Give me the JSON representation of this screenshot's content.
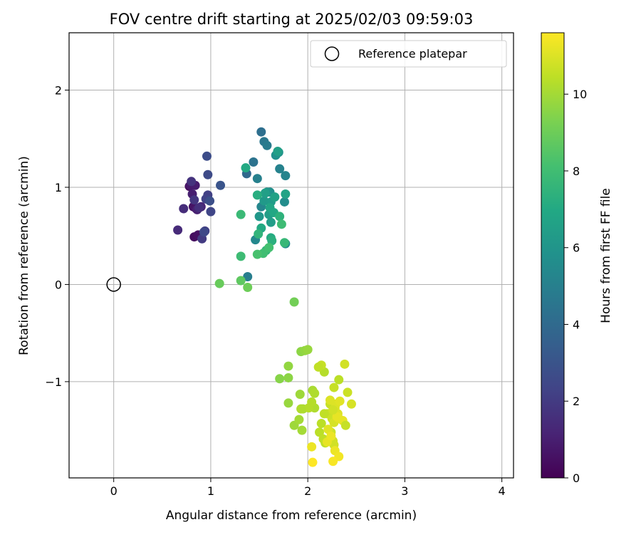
{
  "chart_data": {
    "type": "scatter",
    "title": "FOV centre drift starting at 2025/02/03 09:59:03",
    "xlabel": "Angular distance from reference (arcmin)",
    "ylabel": "Rotation from reference (arcmin)",
    "xlim": [
      -0.46,
      4.12
    ],
    "ylim": [
      -1.99,
      2.59
    ],
    "xticks": [
      0,
      1,
      2,
      3,
      4
    ],
    "yticks": [
      -1,
      0,
      1,
      2
    ],
    "xtick_labels": [
      "0",
      "1",
      "2",
      "3",
      "4"
    ],
    "ytick_labels": [
      "−1",
      "0",
      "1",
      "2"
    ],
    "grid": true,
    "legend": {
      "position": "top-right",
      "entries": [
        "Reference platepar"
      ]
    },
    "reference_point": {
      "x": 0,
      "y": 0
    },
    "colorbar": {
      "label": "Hours from first FF file",
      "range": [
        0,
        11.6
      ],
      "ticks": [
        0,
        2,
        4,
        6,
        8,
        10
      ],
      "tick_labels": [
        "0",
        "2",
        "4",
        "6",
        "8",
        "10"
      ],
      "colormap": "viridis"
    },
    "series": [
      {
        "points": [
          [
            0.78,
            1.01,
            0.3
          ],
          [
            0.83,
            0.49,
            0.4
          ],
          [
            0.87,
            0.51,
            0.5
          ],
          [
            0.82,
            0.8,
            0.6
          ],
          [
            0.85,
            0.78,
            0.7
          ],
          [
            0.79,
            1.02,
            0.8
          ],
          [
            0.84,
            1.02,
            0.9
          ],
          [
            0.81,
            0.93,
            1.0
          ],
          [
            0.86,
            0.77,
            1.1
          ],
          [
            0.9,
            0.8,
            1.2
          ],
          [
            0.66,
            0.56,
            1.4
          ],
          [
            0.72,
            0.78,
            1.5
          ],
          [
            0.88,
            0.79,
            1.6
          ],
          [
            0.8,
            1.06,
            1.7
          ],
          [
            0.83,
            0.87,
            1.8
          ],
          [
            0.91,
            0.47,
            2.0
          ],
          [
            0.94,
            0.55,
            2.1
          ],
          [
            0.97,
            0.92,
            2.2
          ],
          [
            0.95,
            0.88,
            2.3
          ],
          [
            1.0,
            0.75,
            2.4
          ],
          [
            0.97,
            1.13,
            2.6
          ],
          [
            0.96,
            1.32,
            2.7
          ],
          [
            0.99,
            0.86,
            2.8
          ],
          [
            1.1,
            1.02,
            3.0
          ],
          [
            0.93,
            0.54,
            2.5
          ],
          [
            1.37,
            1.14,
            3.9
          ],
          [
            1.52,
            1.57,
            4.2
          ],
          [
            1.44,
            1.26,
            4.4
          ],
          [
            1.55,
            1.47,
            4.6
          ],
          [
            1.58,
            1.43,
            4.8
          ],
          [
            1.48,
            1.09,
            5.0
          ],
          [
            1.71,
            1.19,
            5.1
          ],
          [
            1.77,
            1.12,
            5.2
          ],
          [
            1.52,
            0.8,
            5.3
          ],
          [
            1.46,
            0.46,
            5.4
          ],
          [
            1.77,
            0.42,
            5.5
          ],
          [
            1.76,
            0.85,
            5.6
          ],
          [
            1.61,
            0.95,
            5.7
          ],
          [
            1.67,
            1.33,
            5.8
          ],
          [
            1.7,
            1.36,
            5.9
          ],
          [
            1.58,
            0.95,
            6.0
          ],
          [
            1.5,
            0.7,
            6.1
          ],
          [
            1.55,
            0.86,
            6.2
          ],
          [
            1.62,
            0.85,
            6.3
          ],
          [
            1.6,
            0.72,
            6.4
          ],
          [
            1.56,
            0.94,
            6.5
          ],
          [
            1.66,
            0.9,
            6.6
          ],
          [
            1.77,
            0.93,
            6.7
          ],
          [
            1.61,
            0.79,
            6.8
          ],
          [
            1.65,
            0.74,
            6.9
          ],
          [
            1.52,
            0.58,
            7.0
          ],
          [
            1.62,
            0.48,
            7.1
          ],
          [
            1.48,
            0.92,
            7.2
          ],
          [
            1.36,
            1.2,
            7.0
          ],
          [
            1.62,
            0.64,
            6.4
          ],
          [
            1.69,
            1.37,
            6.5
          ],
          [
            1.63,
            0.45,
            7.3
          ],
          [
            1.71,
            0.7,
            7.4
          ],
          [
            1.49,
            0.52,
            7.5
          ],
          [
            1.57,
            0.35,
            7.6
          ],
          [
            1.76,
            0.43,
            7.7
          ],
          [
            1.31,
            0.72,
            7.8
          ],
          [
            1.31,
            0.29,
            7.9
          ],
          [
            1.54,
            0.32,
            8.0
          ],
          [
            1.6,
            0.38,
            8.1
          ],
          [
            1.73,
            0.62,
            7.9
          ],
          [
            1.48,
            0.31,
            8.2
          ],
          [
            1.38,
            0.08,
            4.9
          ],
          [
            1.31,
            0.04,
            8.7
          ],
          [
            1.09,
            0.01,
            8.9
          ],
          [
            1.38,
            -0.03,
            9.0
          ],
          [
            1.86,
            -0.18,
            9.1
          ],
          [
            1.93,
            -0.69,
            9.6
          ],
          [
            1.97,
            -0.68,
            9.7
          ],
          [
            2.0,
            -0.67,
            9.8
          ],
          [
            1.71,
            -0.97,
            9.5
          ],
          [
            1.8,
            -0.96,
            9.6
          ],
          [
            1.8,
            -0.84,
            9.7
          ],
          [
            1.8,
            -1.22,
            9.8
          ],
          [
            1.92,
            -1.13,
            9.9
          ],
          [
            1.86,
            -1.45,
            9.9
          ],
          [
            1.91,
            -1.39,
            10.0
          ],
          [
            1.94,
            -1.5,
            10.0
          ],
          [
            1.95,
            -1.28,
            10.1
          ],
          [
            2.05,
            -1.09,
            10.1
          ],
          [
            2.07,
            -1.12,
            10.2
          ],
          [
            2.07,
            -1.27,
            10.2
          ],
          [
            2.01,
            -1.27,
            10.3
          ],
          [
            2.04,
            -1.21,
            10.3
          ],
          [
            1.93,
            -1.28,
            10.2
          ],
          [
            2.12,
            -1.52,
            10.4
          ],
          [
            2.14,
            -1.43,
            10.4
          ],
          [
            2.16,
            -1.59,
            10.5
          ],
          [
            2.18,
            -1.63,
            10.5
          ],
          [
            2.2,
            -1.33,
            10.6
          ],
          [
            2.23,
            -1.23,
            10.6
          ],
          [
            2.25,
            -1.38,
            10.7
          ],
          [
            2.24,
            -1.52,
            10.7
          ],
          [
            2.26,
            -1.61,
            10.8
          ],
          [
            2.27,
            -1.65,
            10.8
          ],
          [
            2.27,
            -1.42,
            10.9
          ],
          [
            2.28,
            -1.27,
            10.9
          ],
          [
            2.29,
            -1.23,
            11.0
          ],
          [
            2.31,
            -1.33,
            11.0
          ],
          [
            2.32,
            -1.38,
            11.1
          ],
          [
            2.33,
            -1.2,
            11.1
          ],
          [
            2.3,
            -1.36,
            11.2
          ],
          [
            2.36,
            -1.4,
            11.2
          ],
          [
            2.39,
            -1.45,
            10.6
          ],
          [
            2.41,
            -1.11,
            10.7
          ],
          [
            2.38,
            -0.82,
            10.8
          ],
          [
            2.45,
            -1.23,
            10.9
          ],
          [
            2.32,
            -0.98,
            10.4
          ],
          [
            2.27,
            -1.06,
            10.6
          ],
          [
            2.17,
            -0.9,
            10.3
          ],
          [
            2.14,
            -0.83,
            10.6
          ],
          [
            2.11,
            -0.85,
            10.5
          ],
          [
            2.28,
            -1.71,
            11.3
          ],
          [
            2.32,
            -1.77,
            11.4
          ],
          [
            2.2,
            -1.62,
            11.2
          ],
          [
            2.26,
            -1.82,
            11.5
          ],
          [
            2.04,
            -1.67,
            11.3
          ],
          [
            2.05,
            -1.83,
            11.6
          ],
          [
            2.23,
            -1.19,
            11.0
          ],
          [
            2.26,
            -1.29,
            10.8
          ],
          [
            2.17,
            -1.33,
            10.5
          ],
          [
            2.21,
            -1.49,
            11.1
          ],
          [
            2.24,
            -1.56,
            11.3
          ]
        ]
      }
    ]
  }
}
